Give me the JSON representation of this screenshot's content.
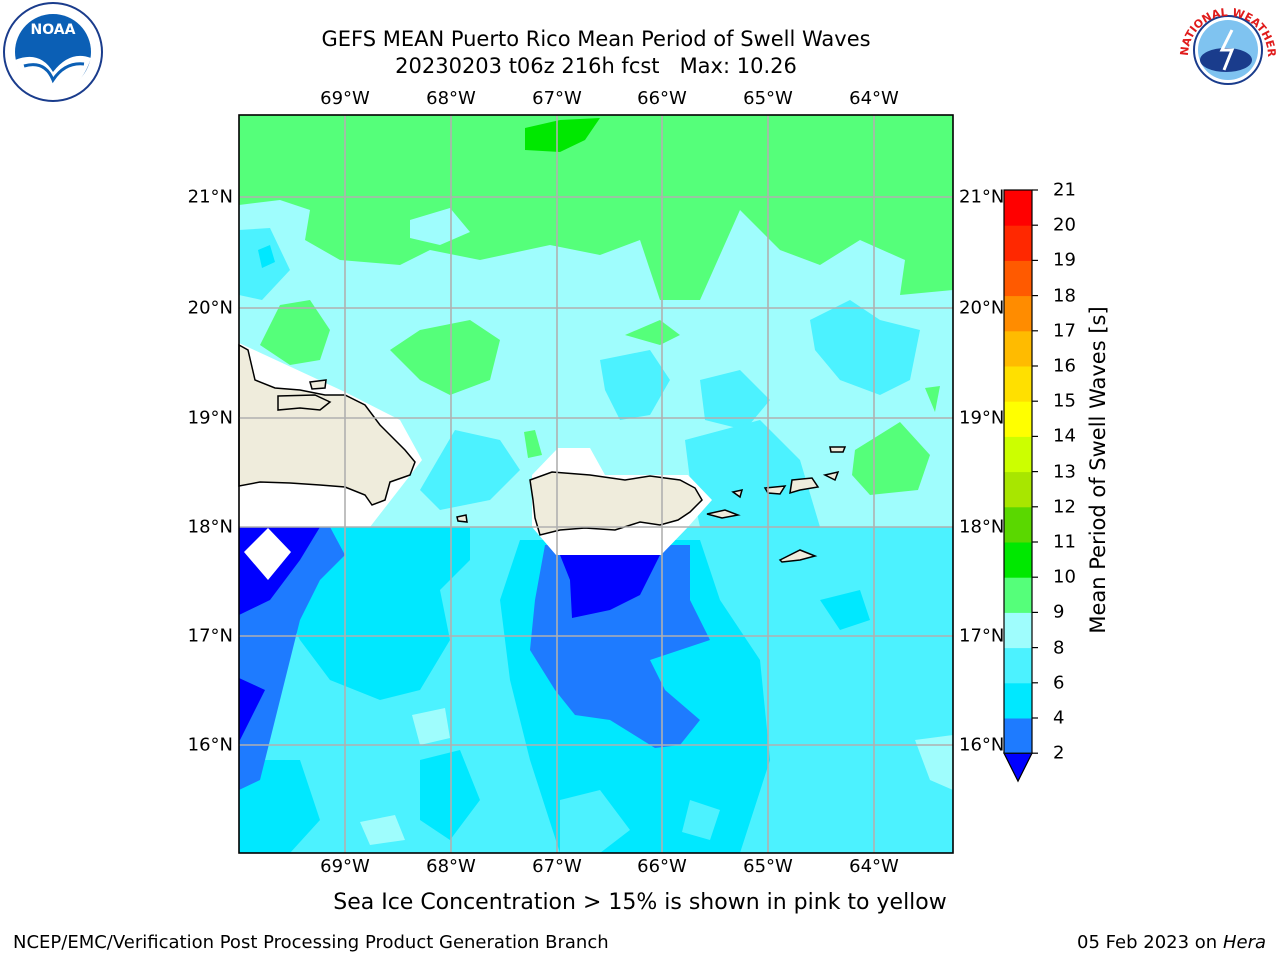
{
  "title": {
    "line1": "GEFS MEAN Puerto Rico Mean Period of Swell Waves",
    "line2": "20230203 t06z 216h fcst   Max: 10.26"
  },
  "map": {
    "lon_labels": [
      "69°W",
      "68°W",
      "67°W",
      "66°W",
      "65°W",
      "64°W"
    ],
    "lat_labels": [
      "21°N",
      "20°N",
      "19°N",
      "18°N",
      "17°N",
      "16°N"
    ]
  },
  "colorbar": {
    "label": "Mean Period of Swell Waves [s]",
    "ticks": [
      "2",
      "4",
      "6",
      "8",
      "9",
      "10",
      "11",
      "12",
      "13",
      "14",
      "15",
      "16",
      "17",
      "18",
      "19",
      "20",
      "21"
    ],
    "colors": [
      "#0000ff",
      "#1e7bff",
      "#00e8ff",
      "#4cf2ff",
      "#9ffdfd",
      "#55ff7a",
      "#00e800",
      "#5ad800",
      "#a8e600",
      "#ccff00",
      "#ffff00",
      "#ffe000",
      "#ffbb00",
      "#ff8c00",
      "#ff5a00",
      "#ff2800",
      "#ff0000"
    ]
  },
  "note": "Sea Ice Concentration > 15% is shown in pink to yellow",
  "footer": {
    "left": "NCEP/EMC/Verification Post Processing Product Generation Branch",
    "date": "05 Feb 2023 on",
    "host": "Hera"
  },
  "logos": {
    "noaa_text": "NOAA",
    "nws_text": "NATIONAL WEATHER SERVICE"
  }
}
